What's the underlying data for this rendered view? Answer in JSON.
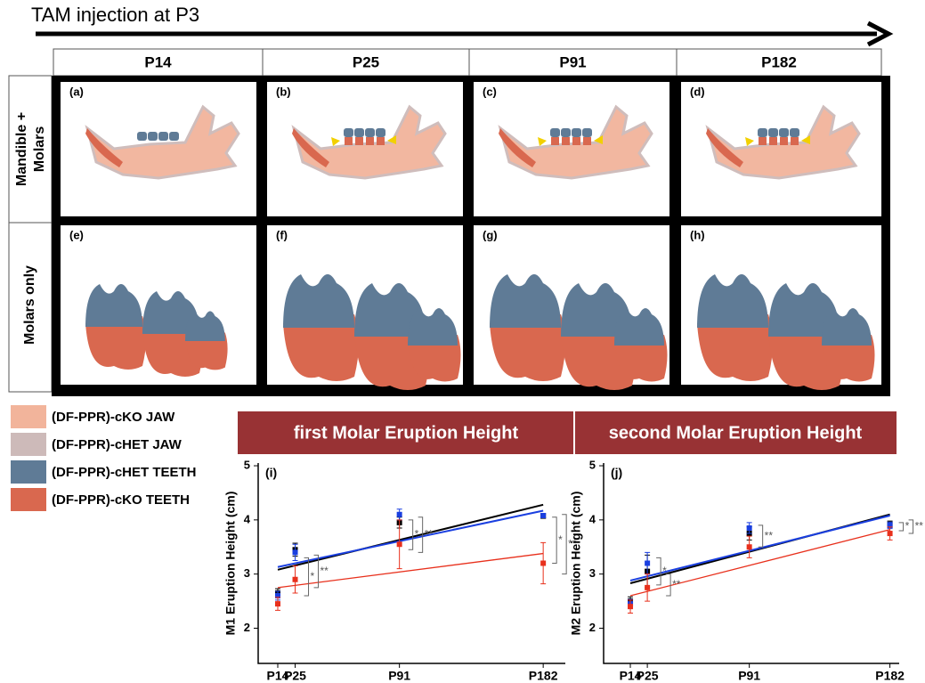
{
  "header": {
    "title": "TAM injection at P3"
  },
  "grid": {
    "columns": [
      "P14",
      "P25",
      "P91",
      "P182"
    ],
    "rows": [
      {
        "label": "Mandible + Molars",
        "panels": [
          "(a)",
          "(b)",
          "(c)",
          "(d)"
        ]
      },
      {
        "label": "Molars only",
        "panels": [
          "(e)",
          "(f)",
          "(g)",
          "(h)"
        ]
      }
    ]
  },
  "legend": [
    {
      "name": "(DF-PPR)-cKO JAW",
      "color": "#f2b49b"
    },
    {
      "name": "(DF-PPR)-cHET JAW",
      "color": "#cdbab9"
    },
    {
      "name": "(DF-PPR)-cHET TEETH",
      "color": "#5f7b96"
    },
    {
      "name": "(DF-PPR)-cKO TEETH",
      "color": "#d9684f"
    }
  ],
  "chart_data": [
    {
      "type": "scatter",
      "title": "first Molar Eruption Height",
      "panel": "(i)",
      "y_label": "M1 Eruption Height (cm)",
      "x": [
        14,
        25,
        91,
        182
      ],
      "xlim": [
        1.6,
        196
      ],
      "xticks": [
        {
          "value": 14,
          "label": "P14"
        },
        {
          "value": 25,
          "label": "P25"
        },
        {
          "value": 91,
          "label": "P91"
        },
        {
          "value": 182,
          "label": "P182"
        }
      ],
      "ylim": [
        1.35,
        5.05
      ],
      "yticks": [
        2,
        3,
        4,
        5
      ],
      "series": [
        {
          "color": "#000000",
          "values": [
            2.65,
            3.45,
            3.95,
            4.07
          ],
          "errors": [
            0.08,
            0.12,
            0.1,
            0.04
          ],
          "fit": [
            3.08,
            4.28
          ]
        },
        {
          "color": "#1a3fe0",
          "values": [
            2.6,
            3.4,
            4.1,
            4.08
          ],
          "errors": [
            0.08,
            0.15,
            0.1,
            0.04
          ],
          "fit": [
            3.13,
            4.17
          ]
        },
        {
          "color": "#e8301c",
          "values": [
            2.45,
            2.9,
            3.55,
            3.2
          ],
          "errors": [
            0.12,
            0.25,
            0.45,
            0.38
          ],
          "fit": [
            2.75,
            3.38
          ]
        }
      ],
      "brackets": [
        {
          "x": 25,
          "from": 2.6,
          "to": 3.3,
          "label": "*"
        },
        {
          "x": 25,
          "from": 2.75,
          "to": 3.35,
          "label": "**"
        },
        {
          "x": 91,
          "from": 3.45,
          "to": 4.0,
          "label": "*"
        },
        {
          "x": 91,
          "from": 3.4,
          "to": 4.05,
          "label": "**"
        },
        {
          "x": 182,
          "from": 3.2,
          "to": 4.05,
          "label": "*"
        },
        {
          "x": 182,
          "from": 3.0,
          "to": 4.1,
          "label": "**"
        }
      ]
    },
    {
      "type": "scatter",
      "title": "second Molar Eruption Height",
      "panel": "(j)",
      "y_label": "M2 Eruption Height (cm)",
      "x": [
        14,
        25,
        91,
        182
      ],
      "xlim": [
        -3.3,
        188
      ],
      "xticks": [
        {
          "value": 14,
          "label": "P14"
        },
        {
          "value": 25,
          "label": "P25"
        },
        {
          "value": 91,
          "label": "P91"
        },
        {
          "value": 182,
          "label": "P182"
        }
      ],
      "ylim": [
        1.35,
        5.05
      ],
      "yticks": [
        2,
        3,
        4,
        5
      ],
      "series": [
        {
          "color": "#000000",
          "values": [
            2.5,
            3.05,
            3.75,
            3.92
          ],
          "errors": [
            0.08,
            0.3,
            0.12,
            0.06
          ],
          "fit": [
            2.83,
            4.1
          ]
        },
        {
          "color": "#1a3fe0",
          "values": [
            2.45,
            3.2,
            3.85,
            3.9
          ],
          "errors": [
            0.08,
            0.2,
            0.1,
            0.06
          ],
          "fit": [
            2.88,
            4.08
          ]
        },
        {
          "color": "#e8301c",
          "values": [
            2.4,
            2.75,
            3.5,
            3.75
          ],
          "errors": [
            0.12,
            0.25,
            0.2,
            0.12
          ],
          "fit": [
            2.6,
            3.82
          ]
        }
      ],
      "brackets": [
        {
          "x": 25,
          "from": 2.8,
          "to": 3.3,
          "label": "*"
        },
        {
          "x": 25,
          "from": 2.6,
          "to": 3.0,
          "label": "**"
        },
        {
          "x": 91,
          "from": 3.5,
          "to": 3.9,
          "label": "**"
        },
        {
          "x": 182,
          "from": 3.8,
          "to": 3.95,
          "label": "*"
        },
        {
          "x": 182,
          "from": 3.75,
          "to": 4.0,
          "label": "**"
        }
      ]
    }
  ]
}
